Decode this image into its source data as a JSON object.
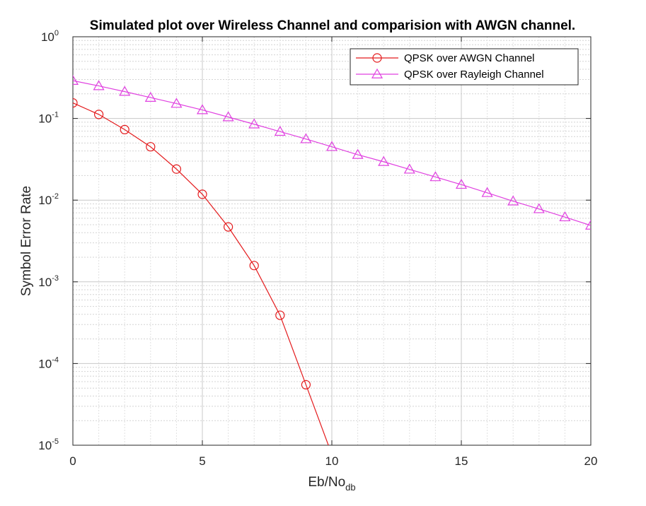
{
  "chart_data": {
    "type": "line",
    "title": "Simulated plot over Wireless Channel and comparision with AWGN channel.",
    "xlabel": "Eb/No",
    "xlabel_subscript": "db",
    "ylabel": "Symbol Error Rate",
    "xlim": [
      0,
      20
    ],
    "ylim": [
      1e-05,
      1
    ],
    "yscale": "log",
    "grid": true,
    "minor_grid": true,
    "legend_position": "top-right",
    "x_ticks": [
      "0",
      "5",
      "10",
      "15",
      "20"
    ],
    "y_ticks": [
      {
        "base": "10",
        "exp": "0"
      },
      {
        "base": "10",
        "exp": "-1"
      },
      {
        "base": "10",
        "exp": "-2"
      },
      {
        "base": "10",
        "exp": "-3"
      },
      {
        "base": "10",
        "exp": "-4"
      },
      {
        "base": "10",
        "exp": "-5"
      }
    ],
    "series": [
      {
        "name": "QPSK over AWGN Channel",
        "color": "#e41a1c",
        "marker": "circle",
        "x": [
          0,
          1,
          2,
          3,
          4,
          5,
          6,
          7,
          8,
          9,
          10
        ],
        "y": [
          0.155,
          0.112,
          0.073,
          0.045,
          0.024,
          0.0118,
          0.0047,
          0.00158,
          0.00039,
          5.5e-05,
          7.7e-06
        ]
      },
      {
        "name": "QPSK over Rayleigh Channel",
        "color": "#e040e0",
        "marker": "triangle",
        "x": [
          0,
          1,
          2,
          3,
          4,
          5,
          6,
          7,
          8,
          9,
          10,
          11,
          12,
          13,
          14,
          15,
          16,
          17,
          18,
          19,
          20
        ],
        "y": [
          0.29,
          0.25,
          0.213,
          0.18,
          0.152,
          0.127,
          0.104,
          0.085,
          0.069,
          0.056,
          0.045,
          0.036,
          0.0295,
          0.0238,
          0.0192,
          0.0155,
          0.0123,
          0.0097,
          0.0078,
          0.0062,
          0.0049
        ]
      }
    ]
  }
}
